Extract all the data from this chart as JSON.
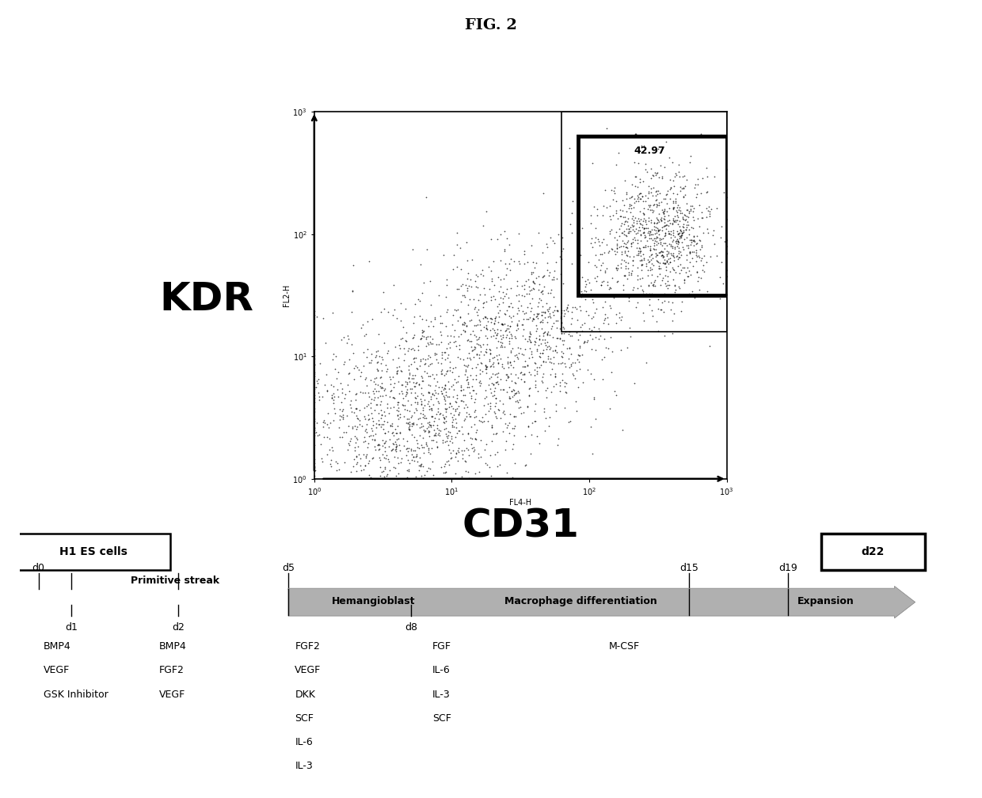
{
  "fig_title": "FIG. 2",
  "flow_plot": {
    "kdr_label": "KDR",
    "cd31_label": "CD31",
    "fl2_label": "FL2-H",
    "fl4_label": "FL4-H",
    "gate_value": "42.97",
    "dot_seed": 42,
    "n_dots": 3000
  },
  "timeline": {
    "start_label": "H1 ES cells",
    "end_label": "d22",
    "arrow_color": "#b0b0b0",
    "arrow_edge_color": "#808080"
  }
}
